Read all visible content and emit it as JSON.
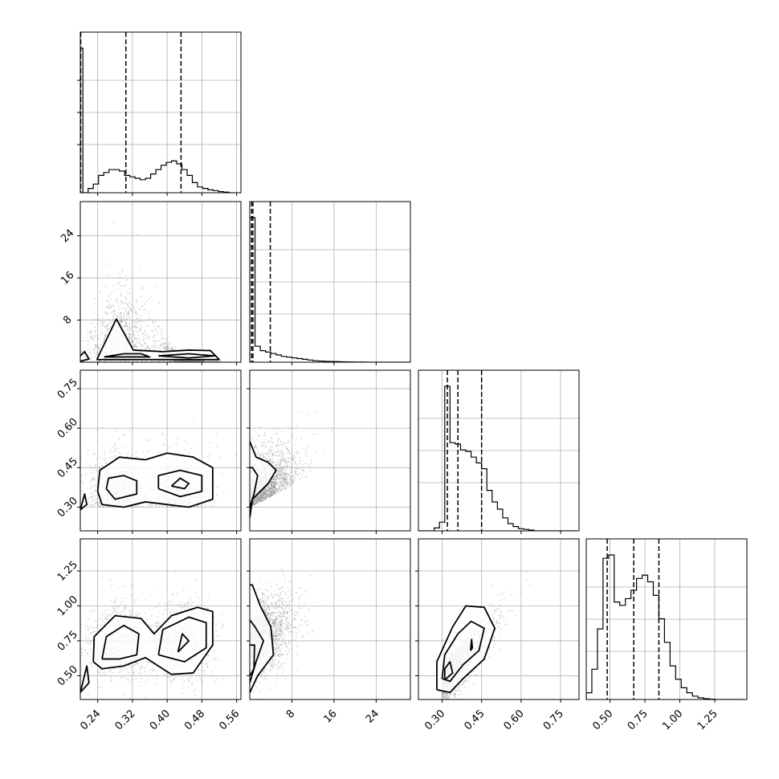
{
  "chart_data": {
    "type": "corner",
    "grid": true,
    "colors": {
      "contour": "#000000",
      "points": "#7f7f7f",
      "grid": "#b0b0b0"
    },
    "params": [
      {
        "range": [
          0.2,
          0.57
        ],
        "ticks": [
          0.24,
          0.32,
          0.4,
          0.48,
          0.56
        ],
        "tick_labels": [
          "0.24",
          "0.32",
          "0.40",
          "0.48",
          "0.56"
        ],
        "quantiles": [
          0.201,
          0.305,
          0.432
        ]
      },
      {
        "range": [
          0,
          30.5
        ],
        "ticks": [
          8,
          16,
          24
        ],
        "tick_labels": [
          "8",
          "16",
          "24"
        ],
        "quantiles": [
          0.35,
          0.6,
          3.9
        ]
      },
      {
        "range": [
          0.21,
          0.82
        ],
        "ticks": [
          0.3,
          0.45,
          0.6,
          0.75
        ],
        "tick_labels": [
          "0.30",
          "0.45",
          "0.60",
          "0.75"
        ],
        "quantiles": [
          0.32,
          0.36,
          0.45
        ]
      },
      {
        "range": [
          0.33,
          1.48
        ],
        "ticks": [
          0.5,
          0.75,
          1.0,
          1.25
        ],
        "tick_labels": [
          "0.50",
          "0.75",
          "1.00",
          "1.25"
        ],
        "quantiles": [
          0.48,
          0.67,
          0.85
        ]
      }
    ],
    "histograms": [
      {
        "param": 0,
        "edges": [
          0.2,
          0.206,
          0.218,
          0.23,
          0.242,
          0.254,
          0.266,
          0.278,
          0.29,
          0.302,
          0.314,
          0.326,
          0.338,
          0.35,
          0.362,
          0.374,
          0.386,
          0.398,
          0.41,
          0.422,
          0.434,
          0.446,
          0.458,
          0.47,
          0.482,
          0.494,
          0.506,
          0.518,
          0.53,
          0.542,
          0.554
        ],
        "counts": [
          1.0,
          0.0,
          0.03,
          0.06,
          0.12,
          0.14,
          0.16,
          0.16,
          0.15,
          0.12,
          0.11,
          0.1,
          0.09,
          0.1,
          0.13,
          0.16,
          0.19,
          0.21,
          0.22,
          0.2,
          0.16,
          0.12,
          0.07,
          0.04,
          0.03,
          0.02,
          0.015,
          0.008,
          0.004,
          0.0
        ]
      },
      {
        "param": 1,
        "edges": [
          0,
          1,
          2,
          3,
          4,
          5,
          6,
          7,
          8,
          9,
          10,
          11,
          12,
          13,
          14,
          15,
          16,
          17,
          18,
          19,
          20,
          21,
          22,
          23,
          24,
          25,
          26,
          27,
          28,
          29,
          30
        ],
        "counts": [
          1.0,
          0.11,
          0.08,
          0.07,
          0.06,
          0.05,
          0.04,
          0.035,
          0.03,
          0.025,
          0.02,
          0.015,
          0.01,
          0.008,
          0.006,
          0.005,
          0.004,
          0.003,
          0.002,
          0.0015,
          0.001,
          0.001,
          0.0,
          0.0,
          0.0,
          0.0,
          0.0,
          0.0,
          0.0,
          0.0
        ]
      },
      {
        "param": 2,
        "edges": [
          0.21,
          0.23,
          0.25,
          0.27,
          0.29,
          0.31,
          0.33,
          0.35,
          0.37,
          0.39,
          0.41,
          0.43,
          0.45,
          0.47,
          0.49,
          0.51,
          0.53,
          0.55,
          0.57,
          0.59,
          0.61,
          0.63,
          0.65,
          0.67,
          0.69,
          0.71,
          0.73,
          0.75,
          0.77,
          0.79,
          0.81
        ],
        "counts": [
          0.0,
          0.0,
          0.0,
          0.02,
          0.06,
          1.0,
          0.61,
          0.6,
          0.56,
          0.55,
          0.51,
          0.47,
          0.43,
          0.28,
          0.2,
          0.15,
          0.09,
          0.05,
          0.03,
          0.015,
          0.01,
          0.005,
          0.0,
          0.0,
          0.0,
          0.0,
          0.0,
          0.0,
          0.0,
          0.0
        ]
      },
      {
        "param": 3,
        "edges": [
          0.33,
          0.37,
          0.41,
          0.45,
          0.49,
          0.53,
          0.57,
          0.61,
          0.65,
          0.69,
          0.73,
          0.77,
          0.81,
          0.85,
          0.89,
          0.93,
          0.97,
          1.01,
          1.05,
          1.09,
          1.13,
          1.17,
          1.21,
          1.25,
          1.29,
          1.33,
          1.37,
          1.41,
          1.45
        ],
        "counts": [
          0.04,
          0.18,
          0.42,
          0.84,
          0.86,
          0.58,
          0.56,
          0.6,
          0.65,
          0.72,
          0.74,
          0.7,
          0.62,
          0.48,
          0.34,
          0.2,
          0.12,
          0.07,
          0.04,
          0.02,
          0.01,
          0.005,
          0.002,
          0.0,
          0.0,
          0.0,
          0.0,
          0.0
        ]
      }
    ],
    "contours": [
      {
        "x": 0,
        "y": 1,
        "levels": [
          [
            [
              0.238,
              0.5
            ],
            [
              0.283,
              8.2
            ],
            [
              0.322,
              2.3
            ],
            [
              0.39,
              2.0
            ],
            [
              0.45,
              2.3
            ],
            [
              0.5,
              2.2
            ],
            [
              0.52,
              0.5
            ],
            [
              0.238,
              0.5
            ]
          ],
          [
            [
              0.255,
              1.0
            ],
            [
              0.3,
              1.6
            ],
            [
              0.34,
              1.6
            ],
            [
              0.36,
              1.0
            ],
            [
              0.255,
              1.0
            ]
          ],
          [
            [
              0.38,
              1.2
            ],
            [
              0.45,
              1.6
            ],
            [
              0.51,
              1.2
            ],
            [
              0.45,
              0.8
            ],
            [
              0.38,
              1.2
            ]
          ],
          [
            [
              0.2,
              1.2
            ],
            [
              0.21,
              2.0
            ],
            [
              0.22,
              0.6
            ],
            [
              0.2,
              0.2
            ]
          ]
        ]
      },
      {
        "x": 0,
        "y": 2,
        "levels": [
          [
            [
              0.24,
              0.36
            ],
            [
              0.245,
              0.44
            ],
            [
              0.29,
              0.49
            ],
            [
              0.35,
              0.48
            ],
            [
              0.4,
              0.505
            ],
            [
              0.46,
              0.49
            ],
            [
              0.505,
              0.45
            ],
            [
              0.505,
              0.33
            ],
            [
              0.45,
              0.3
            ],
            [
              0.35,
              0.32
            ],
            [
              0.3,
              0.3
            ],
            [
              0.25,
              0.31
            ],
            [
              0.24,
              0.36
            ]
          ],
          [
            [
              0.26,
              0.37
            ],
            [
              0.265,
              0.41
            ],
            [
              0.3,
              0.42
            ],
            [
              0.33,
              0.4
            ],
            [
              0.33,
              0.35
            ],
            [
              0.28,
              0.33
            ],
            [
              0.26,
              0.37
            ]
          ],
          [
            [
              0.38,
              0.37
            ],
            [
              0.38,
              0.42
            ],
            [
              0.43,
              0.44
            ],
            [
              0.48,
              0.42
            ],
            [
              0.48,
              0.36
            ],
            [
              0.43,
              0.34
            ],
            [
              0.38,
              0.37
            ]
          ],
          [
            [
              0.41,
              0.38
            ],
            [
              0.43,
              0.41
            ],
            [
              0.45,
              0.39
            ],
            [
              0.44,
              0.37
            ],
            [
              0.41,
              0.38
            ]
          ],
          [
            [
              0.2,
              0.29
            ],
            [
              0.21,
              0.35
            ],
            [
              0.215,
              0.31
            ],
            [
              0.2,
              0.29
            ]
          ]
        ]
      },
      {
        "x": 0,
        "y": 3,
        "levels": [
          [
            [
              0.23,
              0.6
            ],
            [
              0.232,
              0.78
            ],
            [
              0.28,
              0.93
            ],
            [
              0.34,
              0.91
            ],
            [
              0.37,
              0.8
            ],
            [
              0.41,
              0.93
            ],
            [
              0.47,
              0.99
            ],
            [
              0.505,
              0.96
            ],
            [
              0.505,
              0.72
            ],
            [
              0.46,
              0.52
            ],
            [
              0.41,
              0.51
            ],
            [
              0.35,
              0.63
            ],
            [
              0.3,
              0.57
            ],
            [
              0.25,
              0.55
            ],
            [
              0.23,
              0.6
            ]
          ],
          [
            [
              0.25,
              0.62
            ],
            [
              0.26,
              0.78
            ],
            [
              0.3,
              0.86
            ],
            [
              0.335,
              0.8
            ],
            [
              0.33,
              0.65
            ],
            [
              0.29,
              0.62
            ],
            [
              0.25,
              0.62
            ]
          ],
          [
            [
              0.38,
              0.65
            ],
            [
              0.39,
              0.83
            ],
            [
              0.45,
              0.92
            ],
            [
              0.49,
              0.88
            ],
            [
              0.49,
              0.7
            ],
            [
              0.44,
              0.6
            ],
            [
              0.38,
              0.65
            ]
          ],
          [
            [
              0.425,
              0.67
            ],
            [
              0.435,
              0.8
            ],
            [
              0.45,
              0.75
            ],
            [
              0.425,
              0.67
            ]
          ],
          [
            [
              0.2,
              0.38
            ],
            [
              0.215,
              0.57
            ],
            [
              0.22,
              0.45
            ],
            [
              0.2,
              0.38
            ]
          ]
        ]
      },
      {
        "x": 1,
        "y": 2,
        "levels": [
          [
            [
              0,
              0.26
            ],
            [
              0.5,
              0.33
            ],
            [
              2.0,
              0.36
            ],
            [
              3.5,
              0.39
            ],
            [
              5,
              0.44
            ],
            [
              3.5,
              0.47
            ],
            [
              1.2,
              0.49
            ],
            [
              0,
              0.55
            ]
          ],
          [
            [
              0,
              0.3
            ],
            [
              0.8,
              0.35
            ],
            [
              1.5,
              0.42
            ],
            [
              0.5,
              0.45
            ],
            [
              0,
              0.45
            ]
          ]
        ]
      },
      {
        "x": 1,
        "y": 3,
        "levels": [
          [
            [
              0,
              0.38
            ],
            [
              1.5,
              0.5
            ],
            [
              4.5,
              0.65
            ],
            [
              4,
              0.85
            ],
            [
              2,
              1.0
            ],
            [
              0.5,
              1.15
            ],
            [
              0,
              1.15
            ]
          ],
          [
            [
              0,
              0.45
            ],
            [
              1.2,
              0.6
            ],
            [
              2.6,
              0.75
            ],
            [
              1,
              0.85
            ],
            [
              0,
              0.9
            ]
          ],
          [
            [
              0,
              0.5
            ],
            [
              0.8,
              0.55
            ],
            [
              0.9,
              0.72
            ],
            [
              0,
              0.72
            ]
          ]
        ]
      },
      {
        "x": 2,
        "y": 3,
        "levels": [
          [
            [
              0.28,
              0.4
            ],
            [
              0.28,
              0.6
            ],
            [
              0.34,
              0.85
            ],
            [
              0.39,
              1.0
            ],
            [
              0.46,
              0.99
            ],
            [
              0.5,
              0.84
            ],
            [
              0.46,
              0.62
            ],
            [
              0.38,
              0.48
            ],
            [
              0.33,
              0.38
            ],
            [
              0.28,
              0.4
            ]
          ],
          [
            [
              0.3,
              0.48
            ],
            [
              0.31,
              0.65
            ],
            [
              0.36,
              0.8
            ],
            [
              0.41,
              0.89
            ],
            [
              0.46,
              0.84
            ],
            [
              0.44,
              0.68
            ],
            [
              0.38,
              0.58
            ],
            [
              0.33,
              0.46
            ],
            [
              0.3,
              0.48
            ]
          ],
          [
            [
              0.31,
              0.47
            ],
            [
              0.31,
              0.55
            ],
            [
              0.33,
              0.6
            ],
            [
              0.34,
              0.52
            ],
            [
              0.31,
              0.47
            ]
          ],
          [
            [
              0.408,
              0.68
            ],
            [
              0.412,
              0.76
            ],
            [
              0.415,
              0.7
            ],
            [
              0.408,
              0.68
            ]
          ]
        ]
      }
    ]
  }
}
